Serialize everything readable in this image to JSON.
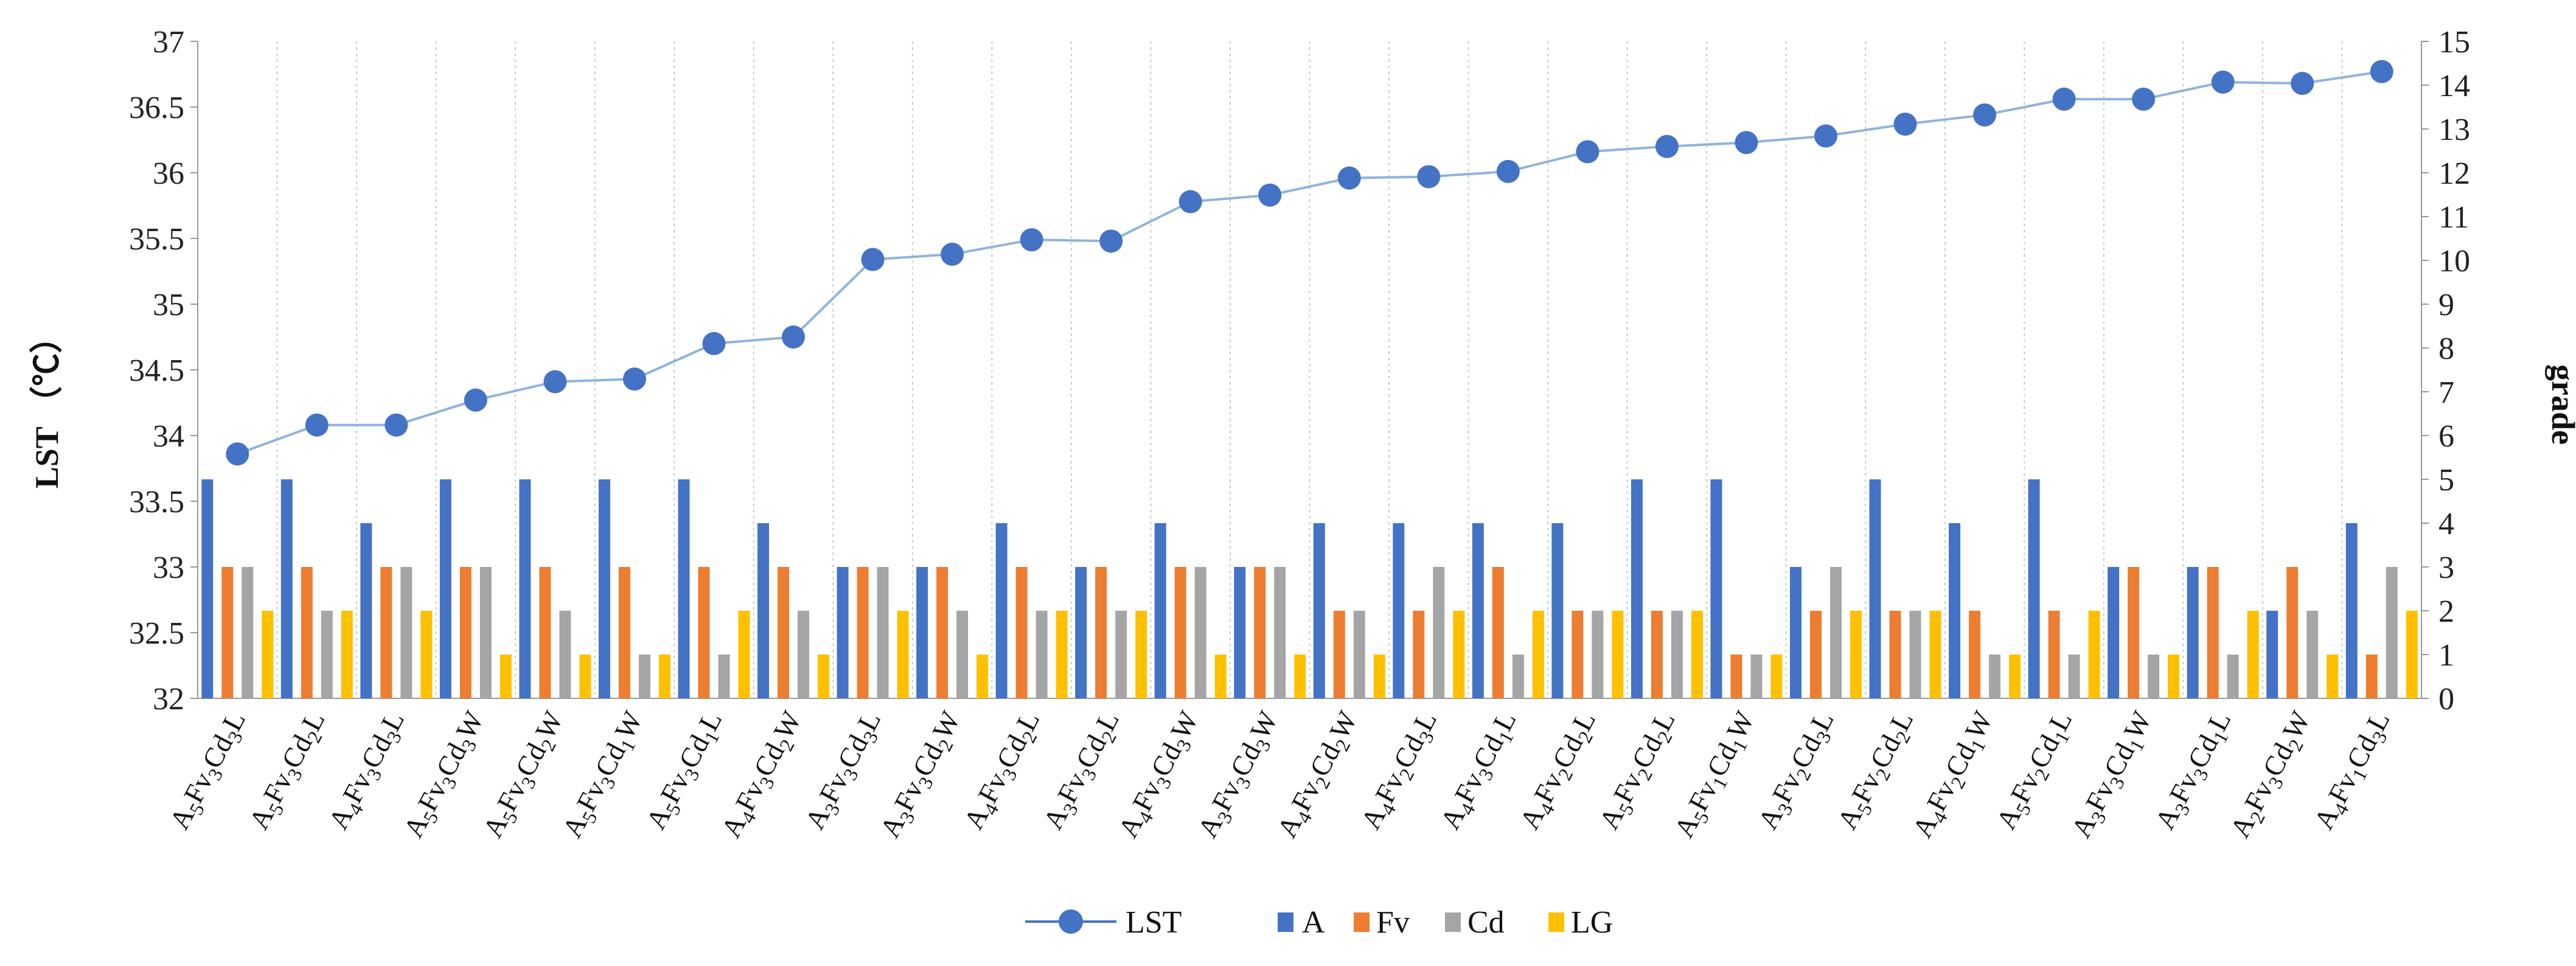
{
  "chart_data": {
    "type": "bar",
    "title": "",
    "ylabel_left": "LST （℃）",
    "ylabel_right": "grade",
    "ylim_left": [
      32,
      37
    ],
    "yticks_left": [
      "32",
      "32.5",
      "33",
      "33.5",
      "34",
      "34.5",
      "35",
      "35.5",
      "36",
      "36.5",
      "37"
    ],
    "ylim_right": [
      0,
      15
    ],
    "yticks_right": [
      "0",
      "1",
      "2",
      "3",
      "4",
      "5",
      "6",
      "7",
      "8",
      "9",
      "10",
      "11",
      "12",
      "13",
      "14",
      "15"
    ],
    "legend_position": "bottom-center",
    "categories": [
      [
        [
          "A",
          "5"
        ],
        [
          "Fv",
          "3"
        ],
        [
          "Cd",
          "3"
        ],
        [
          "L",
          ""
        ]
      ],
      [
        [
          "A",
          "5"
        ],
        [
          "Fv",
          "3"
        ],
        [
          "Cd",
          "2"
        ],
        [
          "L",
          ""
        ]
      ],
      [
        [
          "A",
          "4"
        ],
        [
          "Fv",
          "3"
        ],
        [
          "Cd",
          "3"
        ],
        [
          "L",
          ""
        ]
      ],
      [
        [
          "A",
          "5"
        ],
        [
          "Fv",
          "3"
        ],
        [
          "Cd",
          "3"
        ],
        [
          "W",
          ""
        ]
      ],
      [
        [
          "A",
          "5"
        ],
        [
          "Fv",
          "3"
        ],
        [
          "Cd",
          "2"
        ],
        [
          "W",
          ""
        ]
      ],
      [
        [
          "A",
          "5"
        ],
        [
          "Fv",
          "3"
        ],
        [
          "Cd",
          "1"
        ],
        [
          "W",
          ""
        ]
      ],
      [
        [
          "A",
          "5"
        ],
        [
          "Fv",
          "3"
        ],
        [
          "Cd",
          "1"
        ],
        [
          "L",
          ""
        ]
      ],
      [
        [
          "A",
          "4"
        ],
        [
          "Fv",
          "3"
        ],
        [
          "Cd",
          "2"
        ],
        [
          "W",
          ""
        ]
      ],
      [
        [
          "A",
          "3"
        ],
        [
          "Fv",
          "3"
        ],
        [
          "Cd",
          "3"
        ],
        [
          "L",
          ""
        ]
      ],
      [
        [
          "A",
          "3"
        ],
        [
          "Fv",
          "3"
        ],
        [
          "Cd",
          "2"
        ],
        [
          "W",
          ""
        ]
      ],
      [
        [
          "A",
          "4"
        ],
        [
          "Fv",
          "3"
        ],
        [
          "Cd",
          "2"
        ],
        [
          "L",
          ""
        ]
      ],
      [
        [
          "A",
          "3"
        ],
        [
          "Fv",
          "3"
        ],
        [
          "Cd",
          "2"
        ],
        [
          "L",
          ""
        ]
      ],
      [
        [
          "A",
          "4"
        ],
        [
          "Fv",
          "3"
        ],
        [
          "Cd",
          "3"
        ],
        [
          "W",
          ""
        ]
      ],
      [
        [
          "A",
          "3"
        ],
        [
          "Fv",
          "3"
        ],
        [
          "Cd",
          "3"
        ],
        [
          "W",
          ""
        ]
      ],
      [
        [
          "A",
          "4"
        ],
        [
          "Fv",
          "2"
        ],
        [
          "Cd",
          "2"
        ],
        [
          "W",
          ""
        ]
      ],
      [
        [
          "A",
          "4"
        ],
        [
          "Fv",
          "2"
        ],
        [
          "Cd",
          "3"
        ],
        [
          "L",
          ""
        ]
      ],
      [
        [
          "A",
          "4"
        ],
        [
          "Fv",
          "3"
        ],
        [
          "Cd",
          "1"
        ],
        [
          "L",
          ""
        ]
      ],
      [
        [
          "A",
          "4"
        ],
        [
          "Fv",
          "2"
        ],
        [
          "Cd",
          "2"
        ],
        [
          "L",
          ""
        ]
      ],
      [
        [
          "A",
          "5"
        ],
        [
          "Fv",
          "2"
        ],
        [
          "Cd",
          "2"
        ],
        [
          "L",
          ""
        ]
      ],
      [
        [
          "A",
          "5"
        ],
        [
          "Fv",
          "1"
        ],
        [
          "Cd",
          "1"
        ],
        [
          "W",
          ""
        ]
      ],
      [
        [
          "A",
          "3"
        ],
        [
          "Fv",
          "2"
        ],
        [
          "Cd",
          "3"
        ],
        [
          "L",
          ""
        ]
      ],
      [
        [
          "A",
          "5"
        ],
        [
          "Fv",
          "2"
        ],
        [
          "Cd",
          "2"
        ],
        [
          "L",
          ""
        ]
      ],
      [
        [
          "A",
          "4"
        ],
        [
          "Fv",
          "2"
        ],
        [
          "Cd",
          "1"
        ],
        [
          "W",
          ""
        ]
      ],
      [
        [
          "A",
          "5"
        ],
        [
          "Fv",
          "2"
        ],
        [
          "Cd",
          "1"
        ],
        [
          "L",
          ""
        ]
      ],
      [
        [
          "A",
          "3"
        ],
        [
          "Fv",
          "3"
        ],
        [
          "Cd",
          "1"
        ],
        [
          "W",
          ""
        ]
      ],
      [
        [
          "A",
          "3"
        ],
        [
          "Fv",
          "3"
        ],
        [
          "Cd",
          "1"
        ],
        [
          "L",
          ""
        ]
      ],
      [
        [
          "A",
          "2"
        ],
        [
          "Fv",
          "3"
        ],
        [
          "Cd",
          "2"
        ],
        [
          "W",
          ""
        ]
      ],
      [
        [
          "A",
          "4"
        ],
        [
          "Fv",
          "1"
        ],
        [
          "Cd",
          "3"
        ],
        [
          "L",
          ""
        ]
      ]
    ],
    "line_series": {
      "name": "LST",
      "axis": "left",
      "color": "#4472c4",
      "values": [
        33.86,
        34.08,
        34.08,
        34.27,
        34.41,
        34.43,
        34.7,
        34.75,
        35.34,
        35.38,
        35.49,
        35.48,
        35.78,
        35.83,
        35.96,
        35.97,
        36.01,
        36.16,
        36.2,
        36.23,
        36.28,
        36.37,
        36.44,
        36.56,
        36.56,
        36.69,
        36.68,
        36.77
      ]
    },
    "bar_series": [
      {
        "name": "A",
        "axis": "right",
        "color": "#4472c4",
        "values": [
          5,
          5,
          4,
          5,
          5,
          5,
          5,
          4,
          3,
          3,
          4,
          3,
          4,
          3,
          4,
          4,
          4,
          4,
          5,
          5,
          3,
          5,
          4,
          5,
          3,
          3,
          2,
          4
        ]
      },
      {
        "name": "Fv",
        "axis": "right",
        "color": "#ed7d31",
        "values": [
          3,
          3,
          3,
          3,
          3,
          3,
          3,
          3,
          3,
          3,
          3,
          3,
          3,
          3,
          2,
          2,
          3,
          2,
          2,
          1,
          2,
          2,
          2,
          2,
          3,
          3,
          3,
          1
        ]
      },
      {
        "name": "Cd",
        "axis": "right",
        "color": "#a5a5a5",
        "values": [
          3,
          2,
          3,
          3,
          2,
          1,
          1,
          2,
          3,
          2,
          2,
          2,
          3,
          3,
          2,
          3,
          1,
          2,
          2,
          1,
          3,
          2,
          1,
          1,
          1,
          1,
          2,
          3
        ]
      },
      {
        "name": "LG",
        "axis": "right",
        "color": "#ffc000",
        "values": [
          2,
          2,
          2,
          1,
          1,
          1,
          2,
          1,
          2,
          1,
          2,
          2,
          1,
          1,
          1,
          2,
          2,
          2,
          2,
          1,
          2,
          2,
          1,
          2,
          1,
          2,
          1,
          2
        ]
      }
    ],
    "legend": {
      "line_label": "LST",
      "bar_labels": [
        "A",
        "Fv",
        "Cd",
        "LG"
      ]
    }
  }
}
